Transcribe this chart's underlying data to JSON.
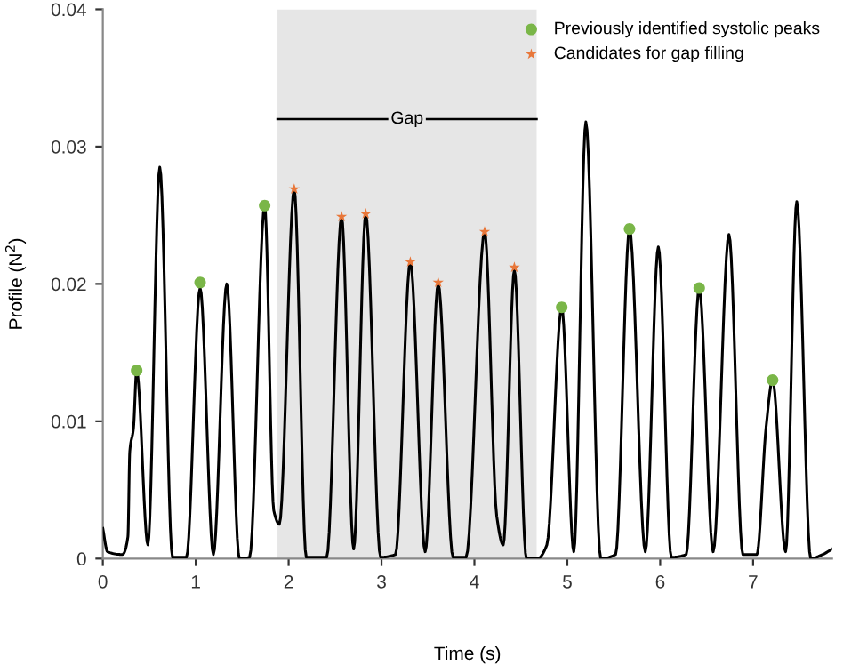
{
  "chart_data": {
    "type": "line",
    "xlabel": "Time (s)",
    "ylabel": "Profile (N$^{2}$)",
    "xlim": [
      0,
      7.85
    ],
    "ylim": [
      0,
      0.04
    ],
    "xticks": [
      0,
      1,
      2,
      3,
      4,
      5,
      6,
      7
    ],
    "yticks": [
      0,
      0.01,
      0.02,
      0.03,
      0.04
    ],
    "grid": false,
    "legend": "top right",
    "bands": [
      {
        "axis": "x",
        "from": 1.88,
        "to": 4.67,
        "label": "Gap",
        "color": "#e6e6e6"
      }
    ],
    "series": [
      {
        "color": "#000000",
        "marker": "none",
        "x": [
          0,
          0.05,
          0.21,
          0.27,
          0.29,
          0.33,
          0.364,
          0.485,
          0.613,
          0.75,
          0.9,
          1.047,
          1.19,
          1.334,
          1.47,
          1.58,
          1.742,
          1.84,
          1.9,
          2.06,
          2.19,
          2.41,
          2.57,
          2.7,
          2.83,
          2.99,
          3.15,
          3.31,
          3.47,
          3.61,
          3.77,
          3.91,
          4.11,
          4.24,
          4.31,
          4.43,
          4.56,
          4.68,
          4.78,
          4.94,
          5.07,
          5.2,
          5.36,
          5.52,
          5.67,
          5.84,
          5.98,
          6.12,
          6.28,
          6.42,
          6.57,
          6.74,
          6.89,
          7.04,
          7.14,
          7.21,
          7.35,
          7.47,
          7.62,
          7.75,
          7.85
        ],
        "values": [
          0.0022,
          0.0005,
          0.0003,
          0.0016,
          0.0078,
          0.0095,
          0.0137,
          0.001,
          0.0285,
          0.0001,
          0.0001,
          0.0197,
          0.0003,
          0.02,
          0,
          0.0001,
          0.0257,
          0.0035,
          0.0025,
          0.0269,
          0.0001,
          0.0001,
          0.0249,
          0.0007,
          0.0251,
          0.0001,
          0.0003,
          0.0216,
          0.0005,
          0.02,
          0.0001,
          0.0001,
          0.0238,
          0.0031,
          0.001,
          0.021,
          0,
          0,
          0.001,
          0.0183,
          0.0005,
          0.0318,
          0,
          0.0003,
          0.024,
          0.0005,
          0.0227,
          0.0001,
          0.0003,
          0.0197,
          0.0005,
          0.0236,
          0.0003,
          0.0003,
          0.0096,
          0.013,
          0.0005,
          0.026,
          0,
          0.0003,
          0.0007
        ]
      },
      {
        "type": "scatter",
        "name": "Previously identified systolic peaks",
        "color": "#7ab648",
        "marker": "circle",
        "x": [
          0.364,
          1.047,
          1.742,
          4.94,
          5.67,
          6.42,
          7.21
        ],
        "values": [
          0.0137,
          0.0201,
          0.0257,
          0.0183,
          0.024,
          0.0197,
          0.013
        ]
      },
      {
        "type": "scatter",
        "name": "Candidates for gap filling",
        "color": "#e8773a",
        "marker": "star",
        "x": [
          2.06,
          2.57,
          2.83,
          3.31,
          3.61,
          4.11,
          4.43
        ],
        "values": [
          0.0269,
          0.0249,
          0.0251,
          0.0216,
          0.0201,
          0.0238,
          0.0212
        ]
      }
    ]
  }
}
